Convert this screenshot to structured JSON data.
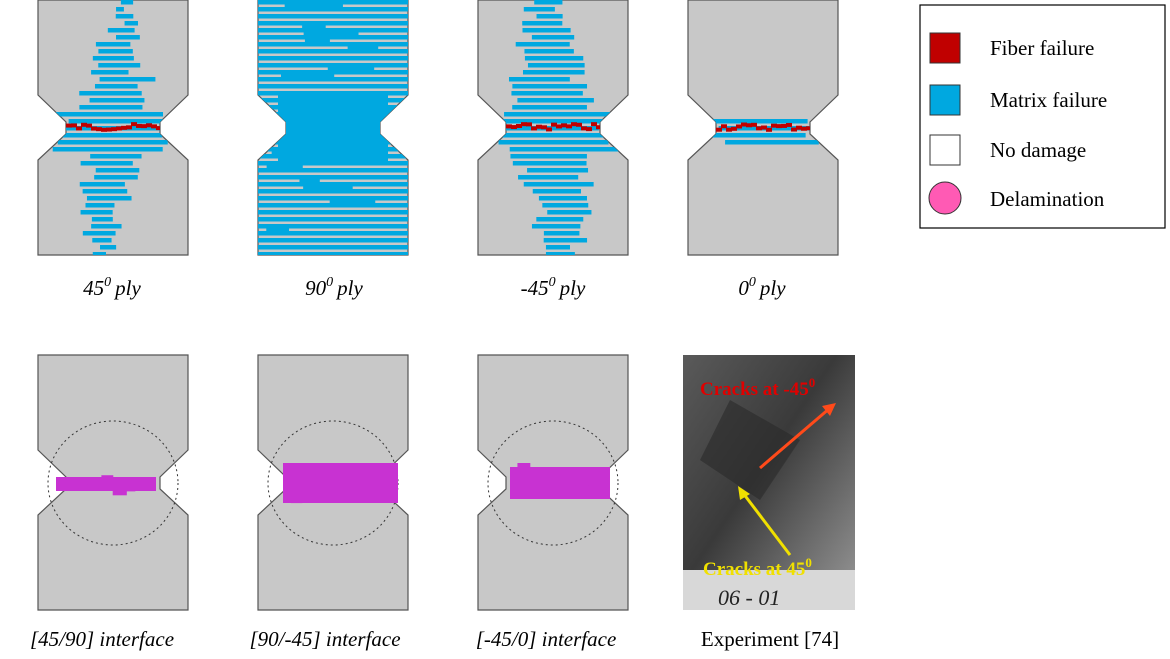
{
  "ply_panels": [
    {
      "caption": {
        "base": "45",
        "sup": "0",
        "rest": "ply"
      }
    },
    {
      "caption": {
        "base": "90",
        "sup": "0",
        "rest": "ply"
      }
    },
    {
      "caption": {
        "base": "-45",
        "sup": "0",
        "rest": "ply"
      }
    },
    {
      "caption": {
        "base": "0",
        "sup": "0",
        "rest": "ply"
      }
    }
  ],
  "interface_panels": [
    {
      "caption": "[45/90] interface"
    },
    {
      "caption": "[90/-45] interface"
    },
    {
      "caption": "[-45/0] interface"
    }
  ],
  "experiment": {
    "caption": "Experiment [74]",
    "annotations": [
      {
        "text": "Cracks at -45",
        "sup": "0"
      },
      {
        "text": "Cracks at 45",
        "sup": "0"
      }
    ],
    "specimen_label": "06 - 01"
  },
  "legend": {
    "items": [
      "Fiber failure",
      "Matrix failure",
      "No damage",
      "Delamination"
    ]
  }
}
